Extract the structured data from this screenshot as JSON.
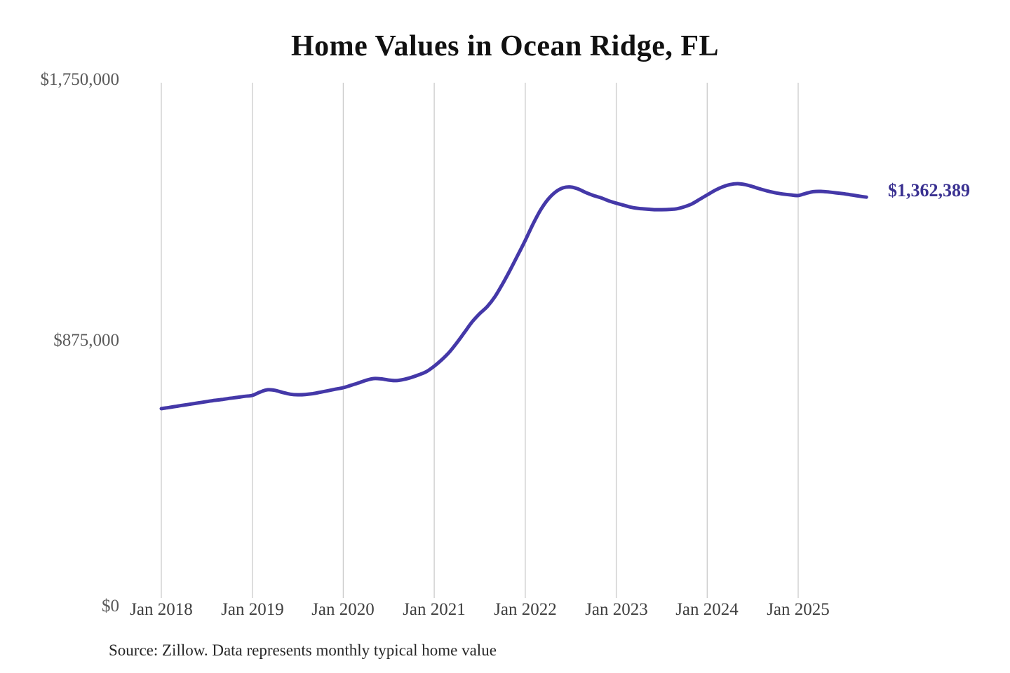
{
  "title": "Home Values in Ocean Ridge, FL",
  "y_axis": {
    "labels": [
      "$1,750,000",
      "$875,000",
      "$0"
    ]
  },
  "x_axis": {
    "labels": [
      "Jan 2018",
      "Jan 2019",
      "Jan 2020",
      "Jan 2021",
      "Jan 2022",
      "Jan 2023",
      "Jan 2024",
      "Jan 2025"
    ]
  },
  "annotation": {
    "final_value_label": "$1,362,389"
  },
  "footer": {
    "source_note": "Source: Zillow. Data represents monthly typical home value"
  },
  "colors": {
    "line": "#4438a8",
    "final_label": "#3a3191",
    "grid": "#cbcbcb",
    "title": "#111111"
  },
  "chart_data": {
    "type": "line",
    "title": "Home Values in Ocean Ridge, FL",
    "xlabel": "",
    "ylabel": "",
    "ylim": [
      0,
      1750000
    ],
    "y_tick_values": [
      0,
      875000,
      1750000
    ],
    "y_tick_labels": [
      "$0",
      "$875,000",
      "$1,750,000"
    ],
    "x_tick_labels": [
      "Jan 2018",
      "Jan 2019",
      "Jan 2020",
      "Jan 2021",
      "Jan 2022",
      "Jan 2023",
      "Jan 2024",
      "Jan 2025"
    ],
    "grid": "vertical-only",
    "legend": "none",
    "final_value": 1362389,
    "series": [
      {
        "name": "Monthly typical home value",
        "x_start": "2018-01",
        "x_interval": "month",
        "values": [
          646000,
          650000,
          654000,
          658000,
          662000,
          666000,
          670000,
          674000,
          677000,
          681000,
          684000,
          688000,
          691000,
          702000,
          710000,
          708000,
          701000,
          695000,
          693000,
          694000,
          697000,
          702000,
          707000,
          712000,
          717000,
          725000,
          733000,
          742000,
          748000,
          747000,
          743000,
          741000,
          745000,
          752000,
          761000,
          772000,
          790000,
          812000,
          838000,
          870000,
          905000,
          940000,
          968000,
          992000,
          1025000,
          1068000,
          1115000,
          1165000,
          1216000,
          1270000,
          1318000,
          1355000,
          1380000,
          1394000,
          1397000,
          1390000,
          1378000,
          1368000,
          1360000,
          1350000,
          1342000,
          1335000,
          1328000,
          1324000,
          1322000,
          1320000,
          1320000,
          1321000,
          1323000,
          1330000,
          1340000,
          1355000,
          1370000,
          1385000,
          1397000,
          1405000,
          1408000,
          1405000,
          1398000,
          1390000,
          1383000,
          1377000,
          1373000,
          1370000,
          1368000,
          1375000,
          1381000,
          1382000,
          1380000,
          1377000,
          1374000,
          1370000,
          1366000,
          1362389
        ]
      }
    ]
  }
}
